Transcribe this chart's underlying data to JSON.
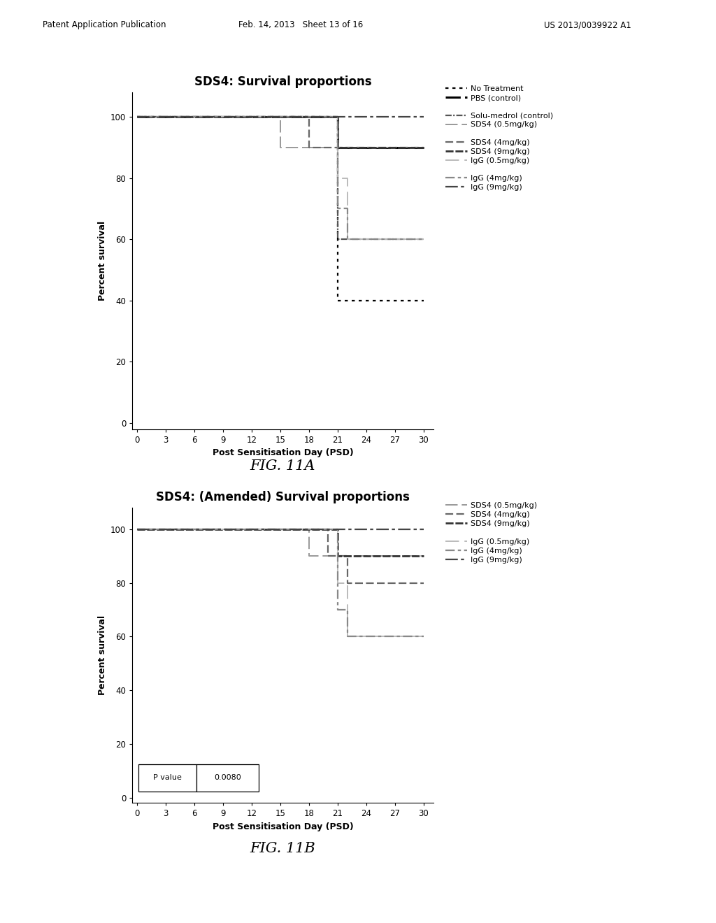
{
  "fig11a_title": "SDS4: Survival proportions",
  "fig11b_title": "SDS4: (Amended) Survival proportions",
  "xlabel": "Post Sensitisation Day (PSD)",
  "ylabel": "Percent survival",
  "xticks": [
    0,
    3,
    6,
    9,
    12,
    15,
    18,
    21,
    24,
    27,
    30
  ],
  "yticks": [
    0,
    20,
    40,
    60,
    80,
    100
  ],
  "xlim": [
    -0.5,
    31
  ],
  "ylim": [
    -2,
    108
  ],
  "fig_caption_a": "FIG. 11A",
  "fig_caption_b": "FIG. 11B",
  "header_left": "Patent Application Publication",
  "header_center": "Feb. 14, 2013   Sheet 13 of 16",
  "header_right": "US 2013/0039922 A1",
  "pvalue_label": "P value",
  "pvalue_val": "0.0080",
  "curves_11a": [
    {
      "label": "No Treatment",
      "style": "dotted",
      "color": "#000000",
      "lw": 1.6,
      "x": [
        0,
        21,
        21,
        30
      ],
      "y": [
        100,
        100,
        40,
        40
      ]
    },
    {
      "label": "PBS (control)",
      "style": "solid_dashed",
      "color": "#000000",
      "lw": 2.2,
      "x": [
        0,
        21,
        21,
        30
      ],
      "y": [
        100,
        100,
        90,
        90
      ]
    },
    {
      "label": "Solu-medrol (control)",
      "style": "dense_hatch",
      "color": "#555555",
      "lw": 1.6,
      "x": [
        0,
        21,
        21,
        30
      ],
      "y": [
        100,
        100,
        60,
        60
      ]
    },
    {
      "label": "SDS4 (0.5mg/kg)",
      "style": "light_hatch",
      "color": "#999999",
      "lw": 1.4,
      "x": [
        0,
        15,
        15,
        30
      ],
      "y": [
        100,
        100,
        90,
        90
      ]
    },
    {
      "label": "SDS4 (4mg/kg)",
      "style": "medium_hatch",
      "color": "#666666",
      "lw": 1.6,
      "x": [
        0,
        18,
        18,
        30
      ],
      "y": [
        100,
        100,
        90,
        90
      ]
    },
    {
      "label": "SDS4 (9mg/kg)",
      "style": "dark_hatch",
      "color": "#333333",
      "lw": 2.0,
      "x": [
        0,
        21,
        21,
        30
      ],
      "y": [
        100,
        100,
        90,
        90
      ]
    },
    {
      "label": "IgG (0.5mg/kg)",
      "style": "very_light",
      "color": "#bbbbbb",
      "lw": 1.4,
      "x": [
        0,
        21,
        21,
        22,
        22,
        30
      ],
      "y": [
        100,
        100,
        80,
        80,
        60,
        60
      ]
    },
    {
      "label": "IgG (4mg/kg)",
      "style": "med_light",
      "color": "#888888",
      "lw": 1.6,
      "x": [
        0,
        21,
        21,
        22,
        22,
        30
      ],
      "y": [
        100,
        100,
        70,
        70,
        60,
        60
      ]
    },
    {
      "label": "IgG (9mg/kg)",
      "style": "darker",
      "color": "#444444",
      "lw": 1.6,
      "x": [
        0,
        30
      ],
      "y": [
        100,
        100
      ]
    }
  ],
  "curves_11b": [
    {
      "label": "SDS4 (0.5mg/kg)",
      "style": "light_hatch",
      "color": "#999999",
      "lw": 1.4,
      "x": [
        0,
        18,
        18,
        30
      ],
      "y": [
        100,
        100,
        90,
        90
      ]
    },
    {
      "label": "SDS4 (4mg/kg)",
      "style": "medium_hatch",
      "color": "#666666",
      "lw": 1.6,
      "x": [
        0,
        20,
        20,
        22,
        22,
        30
      ],
      "y": [
        100,
        100,
        90,
        90,
        80,
        80
      ]
    },
    {
      "label": "SDS4 (9mg/kg)",
      "style": "dark_hatch",
      "color": "#333333",
      "lw": 2.0,
      "x": [
        0,
        21,
        21,
        30
      ],
      "y": [
        100,
        100,
        90,
        90
      ]
    },
    {
      "label": "IgG (0.5mg/kg)",
      "style": "very_light",
      "color": "#bbbbbb",
      "lw": 1.4,
      "x": [
        0,
        21,
        21,
        22,
        22,
        30
      ],
      "y": [
        100,
        100,
        80,
        80,
        60,
        60
      ]
    },
    {
      "label": "IgG (4mg/kg)",
      "style": "med_light",
      "color": "#888888",
      "lw": 1.6,
      "x": [
        0,
        21,
        21,
        22,
        22,
        30
      ],
      "y": [
        100,
        100,
        70,
        70,
        60,
        60
      ]
    },
    {
      "label": "IgG (9mg/kg)",
      "style": "darker",
      "color": "#444444",
      "lw": 1.6,
      "x": [
        0,
        30
      ],
      "y": [
        100,
        100
      ]
    }
  ]
}
